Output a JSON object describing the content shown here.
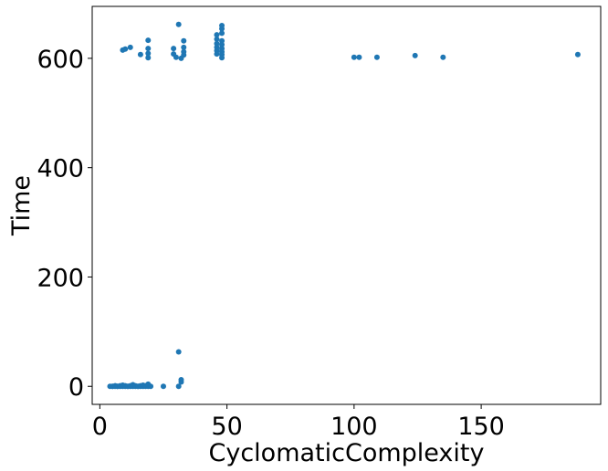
{
  "chart_data": {
    "type": "scatter",
    "title": "",
    "xlabel": "CyclomaticComplexity",
    "ylabel": "Time",
    "xlim": [
      -3,
      197
    ],
    "ylim": [
      -33,
      695
    ],
    "x_ticks": [
      0,
      50,
      100,
      150
    ],
    "y_ticks": [
      0,
      200,
      400,
      600
    ],
    "x_tick_labels": [
      "0",
      "50",
      "100",
      "150"
    ],
    "y_tick_labels": [
      "0",
      "200",
      "400",
      "600"
    ],
    "grid": false,
    "marker_color": "#1f77b4",
    "points": [
      [
        4,
        0
      ],
      [
        5,
        0
      ],
      [
        5,
        0
      ],
      [
        6,
        1
      ],
      [
        6,
        0
      ],
      [
        7,
        0
      ],
      [
        7,
        0
      ],
      [
        8,
        0
      ],
      [
        8,
        1
      ],
      [
        9,
        0
      ],
      [
        9,
        2
      ],
      [
        10,
        0
      ],
      [
        10,
        1
      ],
      [
        11,
        0
      ],
      [
        11,
        0
      ],
      [
        12,
        1
      ],
      [
        12,
        0
      ],
      [
        13,
        0
      ],
      [
        13,
        3
      ],
      [
        14,
        0
      ],
      [
        14,
        1
      ],
      [
        15,
        0
      ],
      [
        15,
        0
      ],
      [
        16,
        1
      ],
      [
        16,
        0
      ],
      [
        17,
        0
      ],
      [
        17,
        2
      ],
      [
        18,
        0
      ],
      [
        18,
        1
      ],
      [
        19,
        0
      ],
      [
        19,
        4
      ],
      [
        20,
        0
      ],
      [
        25,
        0
      ],
      [
        31,
        0
      ],
      [
        31,
        63
      ],
      [
        32,
        8
      ],
      [
        32,
        12
      ],
      [
        9,
        615
      ],
      [
        10,
        617
      ],
      [
        12,
        620
      ],
      [
        16,
        607
      ],
      [
        19,
        633
      ],
      [
        19,
        618
      ],
      [
        19,
        609
      ],
      [
        19,
        601
      ],
      [
        29,
        618
      ],
      [
        29,
        608
      ],
      [
        30,
        602
      ],
      [
        31,
        662
      ],
      [
        32,
        600
      ],
      [
        33,
        632
      ],
      [
        33,
        620
      ],
      [
        33,
        612
      ],
      [
        33,
        606
      ],
      [
        46,
        643
      ],
      [
        46,
        635
      ],
      [
        46,
        627
      ],
      [
        46,
        620
      ],
      [
        46,
        614
      ],
      [
        46,
        608
      ],
      [
        48,
        660
      ],
      [
        48,
        654
      ],
      [
        48,
        646
      ],
      [
        48,
        632
      ],
      [
        48,
        625
      ],
      [
        48,
        618
      ],
      [
        48,
        612
      ],
      [
        48,
        607
      ],
      [
        48,
        601
      ],
      [
        100,
        602
      ],
      [
        102,
        602
      ],
      [
        109,
        602
      ],
      [
        124,
        605
      ],
      [
        135,
        602
      ],
      [
        188,
        607
      ]
    ]
  }
}
